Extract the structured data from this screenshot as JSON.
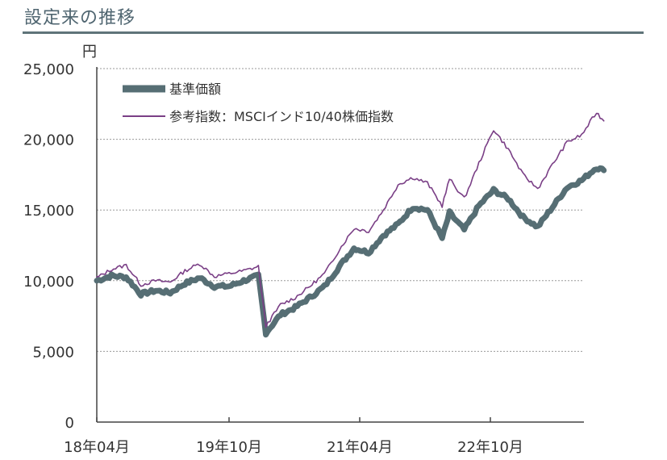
{
  "title": "設定来の推移",
  "y_unit": "円",
  "legend": {
    "fund": "基準価額",
    "benchmark": "参考指数：MSCIインド10/40株価指数"
  },
  "colors": {
    "fund": "#566e74",
    "benchmark": "#7a3f86",
    "grid": "#9a9a9a",
    "title": "#4f6570"
  },
  "chart_data": {
    "type": "line",
    "x_tick_labels": [
      "18年04月",
      "19年10月",
      "21年04月",
      "22年10月"
    ],
    "y_tick_labels": [
      "0",
      "5,000",
      "10,000",
      "15,000",
      "20,000",
      "25,000"
    ],
    "ylim": [
      0,
      25000
    ],
    "xlabel": "",
    "ylabel": "円",
    "series": [
      {
        "name": "基準価額",
        "points": [
          [
            "2018-04",
            10000
          ],
          [
            "2018-06",
            10350
          ],
          [
            "2018-08",
            10250
          ],
          [
            "2018-10",
            9050
          ],
          [
            "2018-12",
            9300
          ],
          [
            "2019-02",
            9150
          ],
          [
            "2019-04",
            9800
          ],
          [
            "2019-06",
            10200
          ],
          [
            "2019-08",
            9600
          ],
          [
            "2019-10",
            9600
          ],
          [
            "2019-12",
            10000
          ],
          [
            "2020-02",
            10350
          ],
          [
            "2020-03",
            6300
          ],
          [
            "2020-05",
            7600
          ],
          [
            "2020-07",
            8100
          ],
          [
            "2020-09",
            8800
          ],
          [
            "2020-11",
            9600
          ],
          [
            "2021-01",
            11000
          ],
          [
            "2021-03",
            12300
          ],
          [
            "2021-05",
            12000
          ],
          [
            "2021-07",
            13200
          ],
          [
            "2021-09",
            14000
          ],
          [
            "2021-11",
            15200
          ],
          [
            "2022-01",
            15000
          ],
          [
            "2022-03",
            13000
          ],
          [
            "2022-04",
            14800
          ],
          [
            "2022-06",
            13600
          ],
          [
            "2022-08",
            15300
          ],
          [
            "2022-10",
            16400
          ],
          [
            "2022-12",
            15800
          ],
          [
            "2023-02",
            14500
          ],
          [
            "2023-04",
            13800
          ],
          [
            "2023-06",
            15200
          ],
          [
            "2023-08",
            16600
          ],
          [
            "2023-10",
            17100
          ],
          [
            "2023-12",
            18000
          ],
          [
            "2024-01",
            17800
          ]
        ]
      },
      {
        "name": "参考指数：MSCIインド10/40株価指数",
        "points": [
          [
            "2018-04",
            10200
          ],
          [
            "2018-06",
            10800
          ],
          [
            "2018-08",
            11100
          ],
          [
            "2018-10",
            9700
          ],
          [
            "2018-12",
            10000
          ],
          [
            "2019-02",
            9900
          ],
          [
            "2019-04",
            10700
          ],
          [
            "2019-06",
            11200
          ],
          [
            "2019-08",
            10300
          ],
          [
            "2019-10",
            10500
          ],
          [
            "2019-12",
            10700
          ],
          [
            "2020-02",
            11000
          ],
          [
            "2020-03",
            6800
          ],
          [
            "2020-05",
            8300
          ],
          [
            "2020-07",
            8800
          ],
          [
            "2020-09",
            9600
          ],
          [
            "2020-11",
            10500
          ],
          [
            "2021-01",
            12200
          ],
          [
            "2021-03",
            13700
          ],
          [
            "2021-05",
            13500
          ],
          [
            "2021-07",
            15000
          ],
          [
            "2021-09",
            16800
          ],
          [
            "2021-11",
            17300
          ],
          [
            "2022-01",
            16900
          ],
          [
            "2022-03",
            15300
          ],
          [
            "2022-04",
            17200
          ],
          [
            "2022-06",
            15800
          ],
          [
            "2022-08",
            18300
          ],
          [
            "2022-10",
            20700
          ],
          [
            "2022-12",
            19300
          ],
          [
            "2023-02",
            17500
          ],
          [
            "2023-04",
            16500
          ],
          [
            "2023-06",
            18200
          ],
          [
            "2023-08",
            19800
          ],
          [
            "2023-10",
            20300
          ],
          [
            "2023-12",
            21900
          ],
          [
            "2024-01",
            21300
          ]
        ]
      }
    ]
  }
}
